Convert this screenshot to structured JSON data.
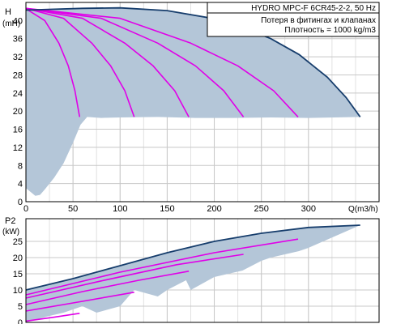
{
  "colors": {
    "fill": "#b4c6d8",
    "envelope": "#163d6c",
    "curve": "#e000e8",
    "grid": "#c8c8c8",
    "axis": "#000000"
  },
  "info_box": {
    "line1": "HYDRO MPC-F 6CR45-2-2, 50 Hz",
    "line2": "Потеря в фитингах и клапанах",
    "line3": "Плотность = 1000 kg/m3"
  },
  "chart_data": [
    {
      "type": "line",
      "ylabel_line1": "H",
      "ylabel_line2": "(mH)",
      "xlabel": "Q(m3/h)",
      "xlim": [
        0,
        375
      ],
      "ylim": [
        0,
        44
      ],
      "x_tick_values": [
        0,
        50,
        100,
        150,
        200,
        250,
        300
      ],
      "y_tick_values": [
        0,
        4,
        8,
        12,
        16,
        20,
        24,
        28,
        32,
        36,
        40
      ],
      "grid": true,
      "envelope_max": {
        "x": [
          0,
          30,
          60,
          100,
          150,
          200,
          230,
          260,
          290,
          320,
          340,
          355
        ],
        "y": [
          42.3,
          42.5,
          42.7,
          42.8,
          42.2,
          40.4,
          38.5,
          36.0,
          32.5,
          27.5,
          23.0,
          18.7
        ]
      },
      "envelope_min": {
        "x": [
          0,
          10,
          15,
          20,
          30,
          40,
          50,
          58,
          65,
          80,
          100,
          140,
          180,
          220,
          260,
          300,
          355
        ],
        "y": [
          3.0,
          1.3,
          1.5,
          2.7,
          5.3,
          8.5,
          13.0,
          17.0,
          18.7,
          18.5,
          18.6,
          18.7,
          18.5,
          18.5,
          18.6,
          18.5,
          18.7
        ],
        "x_left": [
          0,
          5
        ],
        "y_left": [
          42.3,
          2.0
        ]
      },
      "series": [
        {
          "x": [
            0,
            20,
            35,
            45,
            52,
            57
          ],
          "y": [
            42.6,
            40.0,
            35.0,
            30.0,
            24.5,
            18.7
          ]
        },
        {
          "x": [
            0,
            40,
            70,
            90,
            105,
            115
          ],
          "y": [
            42.7,
            40.5,
            35.0,
            30.0,
            24.5,
            18.7
          ]
        },
        {
          "x": [
            0,
            60,
            105,
            135,
            158,
            173
          ],
          "y": [
            42.7,
            40.5,
            35.0,
            30.0,
            24.5,
            18.7
          ]
        },
        {
          "x": [
            0,
            80,
            140,
            180,
            210,
            231
          ],
          "y": [
            42.7,
            40.5,
            35.0,
            30.0,
            24.5,
            18.7
          ]
        },
        {
          "x": [
            0,
            100,
            175,
            225,
            263,
            289
          ],
          "y": [
            42.7,
            40.5,
            35.0,
            30.0,
            24.5,
            18.7
          ]
        }
      ]
    },
    {
      "type": "line",
      "ylabel_line1": "P2",
      "ylabel_line2": "(kW)",
      "xlim": [
        0,
        375
      ],
      "ylim": [
        0,
        32
      ],
      "x_tick_values": [
        0,
        50,
        100,
        150,
        200,
        250,
        300
      ],
      "y_tick_values": [
        0,
        5,
        10,
        15,
        20,
        25
      ],
      "grid": true,
      "envelope_max": {
        "x": [
          0,
          50,
          100,
          150,
          200,
          250,
          300,
          355
        ],
        "y": [
          10.0,
          13.5,
          17.5,
          21.5,
          25.0,
          27.5,
          29.3,
          30.0
        ]
      },
      "envelope_min": {
        "x": [
          0,
          25,
          40,
          60,
          75,
          100,
          115,
          140,
          150,
          170,
          175,
          200,
          230,
          250,
          260,
          290,
          300,
          355
        ],
        "y": [
          0.0,
          2.0,
          3.0,
          5.0,
          3.0,
          5.0,
          10.0,
          8.0,
          10.0,
          13.0,
          10.0,
          14.0,
          16.0,
          19.0,
          20.0,
          22.0,
          23.0,
          30.0
        ]
      },
      "series": [
        {
          "x": [
            0,
            30,
            57
          ],
          "y": [
            0.4,
            1.6,
            2.8
          ]
        },
        {
          "x": [
            0,
            60,
            115
          ],
          "y": [
            3.5,
            6.5,
            9.3
          ]
        },
        {
          "x": [
            0,
            60,
            120,
            173
          ],
          "y": [
            5.5,
            9.5,
            13.0,
            15.8
          ]
        },
        {
          "x": [
            0,
            80,
            160,
            231
          ],
          "y": [
            7.5,
            12.8,
            17.8,
            21.0
          ]
        },
        {
          "x": [
            0,
            100,
            200,
            289
          ],
          "y": [
            8.5,
            15.5,
            21.5,
            25.7
          ]
        }
      ]
    }
  ]
}
